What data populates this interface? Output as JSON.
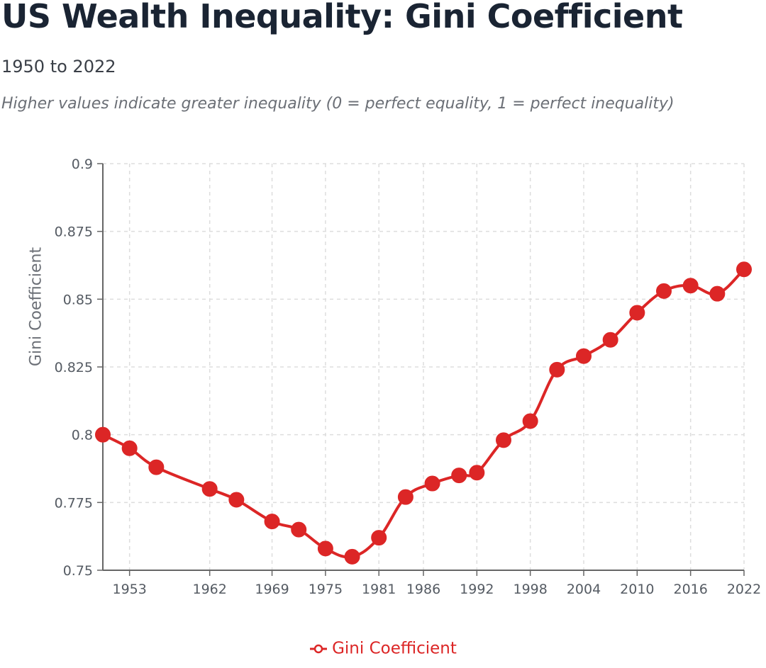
{
  "header": {
    "title": "US Wealth Inequality: Gini Coefficient",
    "subtitle": "1950 to 2022",
    "note": "Higher values indicate greater inequality (0 = perfect equality, 1 = perfect inequality)"
  },
  "colors": {
    "series": "#dc2626",
    "grid": "#dddddd",
    "axis": "#666666",
    "title": "#1a2433"
  },
  "chart_data": {
    "type": "line",
    "title": "US Wealth Inequality: Gini Coefficient",
    "subtitle": "1950 to 2022",
    "xlabel": "",
    "ylabel": "Gini Coefficient",
    "xlim": [
      1950,
      2022
    ],
    "ylim": [
      0.75,
      0.9
    ],
    "x_ticks": [
      1953,
      1962,
      1969,
      1975,
      1981,
      1986,
      1992,
      1998,
      2004,
      2010,
      2016,
      2022
    ],
    "y_ticks": [
      "0.75",
      "0.775",
      "0.8",
      "0.825",
      "0.85",
      "0.875",
      "0.9"
    ],
    "grid": true,
    "legend_position": "bottom-center",
    "series": [
      {
        "name": "Gini Coefficient",
        "color": "#dc2626",
        "x": [
          1950,
          1953,
          1956,
          1962,
          1965,
          1969,
          1972,
          1975,
          1978,
          1981,
          1984,
          1987,
          1990,
          1992,
          1995,
          1998,
          2001,
          2004,
          2007,
          2010,
          2013,
          2016,
          2019,
          2022
        ],
        "values": [
          0.8,
          0.795,
          0.788,
          0.78,
          0.776,
          0.768,
          0.765,
          0.758,
          0.755,
          0.762,
          0.777,
          0.782,
          0.785,
          0.786,
          0.798,
          0.805,
          0.824,
          0.829,
          0.835,
          0.845,
          0.853,
          0.855,
          0.852,
          0.861
        ]
      }
    ]
  }
}
